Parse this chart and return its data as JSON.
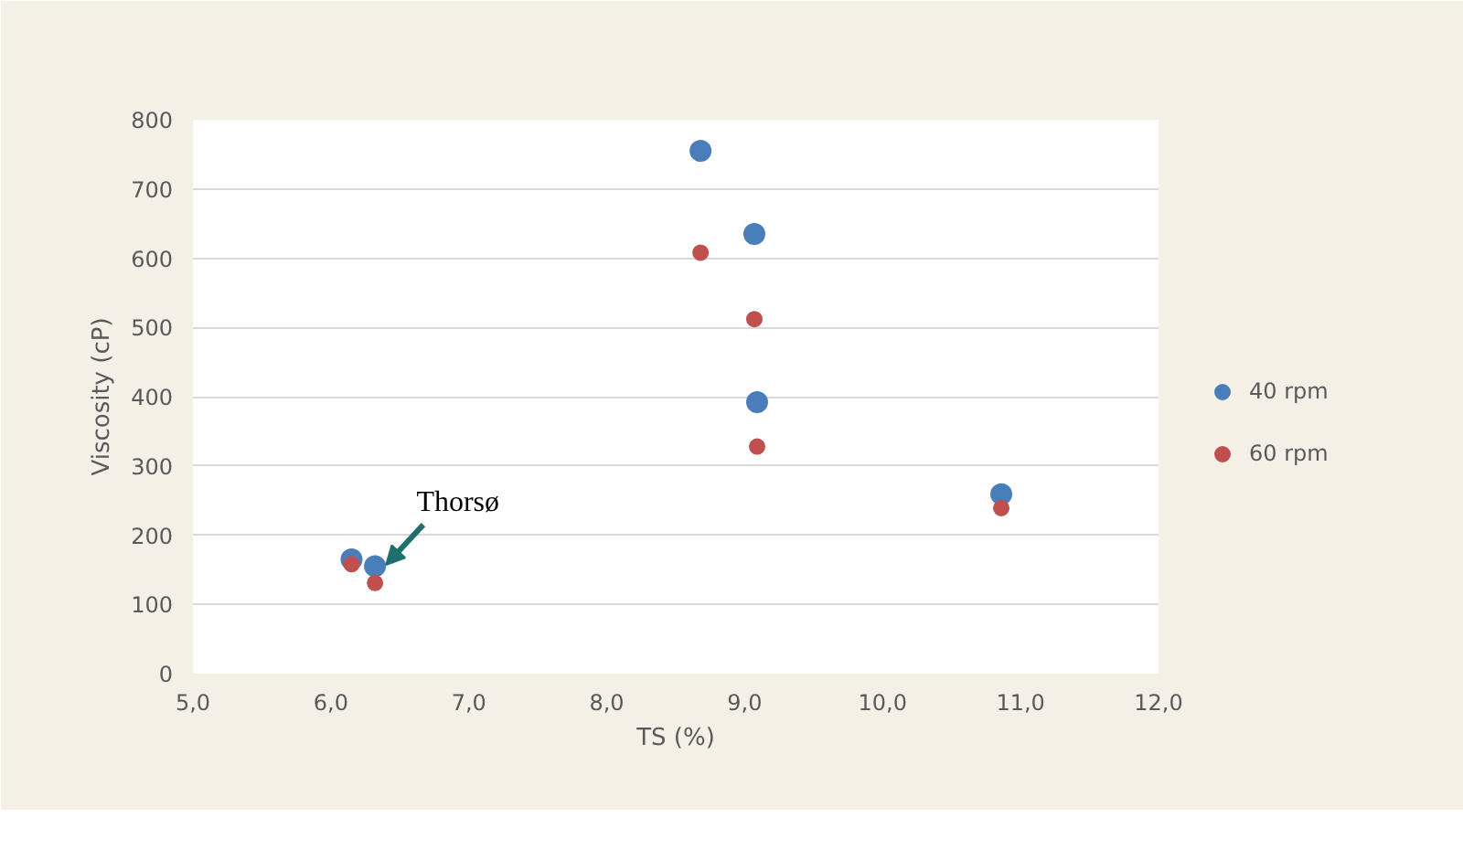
{
  "chart_data": {
    "type": "scatter",
    "xlabel": "TS (%)",
    "ylabel": "Viscosity (cP)",
    "x": [
      6.15,
      6.32,
      8.68,
      9.07,
      9.09,
      10.86
    ],
    "series": [
      {
        "name": "40 rpm",
        "color": "#4a7ebb",
        "values": [
          165,
          155,
          755,
          635,
          392,
          259
        ]
      },
      {
        "name": "60 rpm",
        "color": "#c0504d",
        "values": [
          158,
          131,
          608,
          512,
          328,
          239
        ]
      }
    ],
    "xlim": [
      5,
      12
    ],
    "ylim": [
      0,
      800
    ],
    "xticks": [
      {
        "value": 5,
        "label": "5,0"
      },
      {
        "value": 6,
        "label": "6,0"
      },
      {
        "value": 7,
        "label": "7,0"
      },
      {
        "value": 8,
        "label": "8,0"
      },
      {
        "value": 9,
        "label": "9,0"
      },
      {
        "value": 10,
        "label": "10,0"
      },
      {
        "value": 11,
        "label": "11,0"
      },
      {
        "value": 12,
        "label": "12,0"
      }
    ],
    "yticks": [
      0,
      100,
      200,
      300,
      400,
      500,
      600,
      700,
      800
    ],
    "annotations": [
      {
        "text": "Thorsø",
        "x": 6.32,
        "y": 155
      }
    ],
    "grid": "y",
    "legend": "right",
    "marker": "circle"
  }
}
